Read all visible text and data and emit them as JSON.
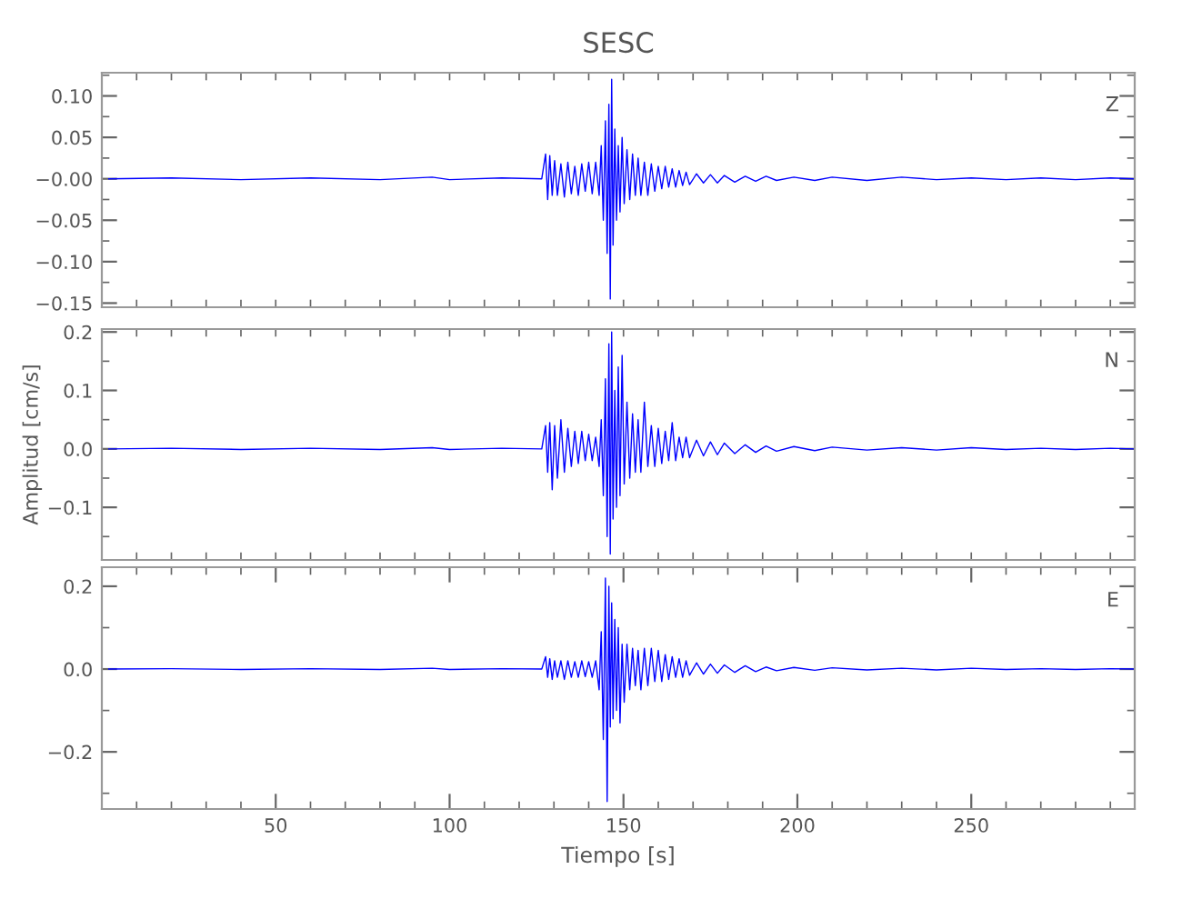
{
  "chart_data": [
    {
      "type": "line",
      "title": "SESC",
      "annotations": [
        "Z"
      ],
      "tick_labels": "y",
      "xlim": [
        0,
        297
      ],
      "ylim": [
        -0.155,
        0.128
      ],
      "xticks": [
        {
          "value": 10,
          "label": null
        },
        {
          "value": 20,
          "label": null
        },
        {
          "value": 30,
          "label": null
        },
        {
          "value": 40,
          "label": null
        },
        {
          "value": 50,
          "label": null
        },
        {
          "value": 60,
          "label": null
        },
        {
          "value": 70,
          "label": null
        },
        {
          "value": 80,
          "label": null
        },
        {
          "value": 90,
          "label": null
        },
        {
          "value": 100,
          "label": null
        },
        {
          "value": 110,
          "label": null
        },
        {
          "value": 120,
          "label": null
        },
        {
          "value": 130,
          "label": null
        },
        {
          "value": 140,
          "label": null
        },
        {
          "value": 150,
          "label": null
        },
        {
          "value": 160,
          "label": null
        },
        {
          "value": 170,
          "label": null
        },
        {
          "value": 180,
          "label": null
        },
        {
          "value": 190,
          "label": null
        },
        {
          "value": 200,
          "label": null
        },
        {
          "value": 210,
          "label": null
        },
        {
          "value": 220,
          "label": null
        },
        {
          "value": 230,
          "label": null
        },
        {
          "value": 240,
          "label": null
        },
        {
          "value": 250,
          "label": null
        },
        {
          "value": 260,
          "label": null
        },
        {
          "value": 270,
          "label": null
        },
        {
          "value": 280,
          "label": null
        },
        {
          "value": 290,
          "label": null
        }
      ],
      "yticks": [
        {
          "value": -0.15,
          "label": "−0.15"
        },
        {
          "value": -0.125,
          "label": null
        },
        {
          "value": -0.1,
          "label": "−0.10"
        },
        {
          "value": -0.075,
          "label": null
        },
        {
          "value": -0.05,
          "label": "−0.05"
        },
        {
          "value": -0.025,
          "label": null
        },
        {
          "value": 0,
          "label": "−0.00"
        },
        {
          "value": 0.025,
          "label": null
        },
        {
          "value": 0.05,
          "label": "0.05"
        },
        {
          "value": 0.075,
          "label": null
        },
        {
          "value": 0.1,
          "label": "0.10"
        },
        {
          "value": 0.125,
          "label": null
        }
      ],
      "series": [
        {
          "color": "#0000ff",
          "x": [
            2,
            20,
            40,
            60,
            80,
            95,
            100,
            115,
            126.5,
            127.6,
            128.2,
            128.8,
            129.5,
            130.2,
            131,
            132,
            133,
            134,
            135,
            136,
            137,
            138,
            139,
            140,
            141,
            142,
            143,
            143.6,
            144.2,
            144.8,
            145.3,
            145.8,
            146.2,
            146.6,
            147,
            147.5,
            148,
            148.5,
            149,
            149.6,
            150.2,
            151,
            151.8,
            152.6,
            153.4,
            154.2,
            155,
            156,
            157,
            158,
            159,
            160,
            161,
            162,
            163,
            164,
            165,
            166,
            167,
            168,
            169,
            171,
            173,
            175,
            177,
            179,
            182,
            185,
            188,
            191,
            194,
            199,
            205,
            210,
            220,
            230,
            240,
            250,
            260,
            270,
            280,
            290,
            297
          ],
          "values": [
            0,
            0.001,
            -0.001,
            0.001,
            -0.001,
            0.002,
            -0.001,
            0.001,
            0,
            0.03,
            -0.025,
            0.028,
            -0.02,
            0.022,
            -0.02,
            0.018,
            -0.022,
            0.02,
            -0.018,
            0.015,
            -0.02,
            0.018,
            -0.015,
            0.02,
            -0.018,
            0.02,
            -0.02,
            0.04,
            -0.05,
            0.07,
            -0.09,
            0.09,
            -0.145,
            0.12,
            -0.08,
            0.06,
            -0.05,
            0.04,
            -0.04,
            0.05,
            -0.03,
            0.035,
            -0.025,
            0.03,
            -0.02,
            0.025,
            -0.02,
            0.02,
            -0.02,
            0.018,
            -0.015,
            0.015,
            -0.012,
            0.015,
            -0.01,
            0.012,
            -0.01,
            0.01,
            -0.008,
            0.008,
            -0.007,
            0.006,
            -0.005,
            0.005,
            -0.005,
            0.004,
            -0.004,
            0.003,
            -0.003,
            0.003,
            -0.002,
            0.002,
            -0.002,
            0.002,
            -0.002,
            0.002,
            -0.001,
            0.001,
            -0.001,
            0.001,
            -0.001,
            0.001,
            0
          ]
        }
      ]
    },
    {
      "type": "line",
      "ylabel": "Amplitud [cm/s]",
      "annotations": [
        "N"
      ],
      "tick_labels": "y",
      "xlim": [
        0,
        297
      ],
      "ylim": [
        -0.19,
        0.205
      ],
      "xticks": [
        {
          "value": 10,
          "label": null
        },
        {
          "value": 20,
          "label": null
        },
        {
          "value": 30,
          "label": null
        },
        {
          "value": 40,
          "label": null
        },
        {
          "value": 50,
          "label": null
        },
        {
          "value": 60,
          "label": null
        },
        {
          "value": 70,
          "label": null
        },
        {
          "value": 80,
          "label": null
        },
        {
          "value": 90,
          "label": null
        },
        {
          "value": 100,
          "label": null
        },
        {
          "value": 110,
          "label": null
        },
        {
          "value": 120,
          "label": null
        },
        {
          "value": 130,
          "label": null
        },
        {
          "value": 140,
          "label": null
        },
        {
          "value": 150,
          "label": null
        },
        {
          "value": 160,
          "label": null
        },
        {
          "value": 170,
          "label": null
        },
        {
          "value": 180,
          "label": null
        },
        {
          "value": 190,
          "label": null
        },
        {
          "value": 200,
          "label": null
        },
        {
          "value": 210,
          "label": null
        },
        {
          "value": 220,
          "label": null
        },
        {
          "value": 230,
          "label": null
        },
        {
          "value": 240,
          "label": null
        },
        {
          "value": 250,
          "label": null
        },
        {
          "value": 260,
          "label": null
        },
        {
          "value": 270,
          "label": null
        },
        {
          "value": 280,
          "label": null
        },
        {
          "value": 290,
          "label": null
        }
      ],
      "yticks": [
        {
          "value": -0.15,
          "label": null
        },
        {
          "value": -0.1,
          "label": "−0.1"
        },
        {
          "value": -0.05,
          "label": null
        },
        {
          "value": 0,
          "label": "0.0"
        },
        {
          "value": 0.05,
          "label": null
        },
        {
          "value": 0.1,
          "label": "0.1"
        },
        {
          "value": 0.15,
          "label": null
        },
        {
          "value": 0.2,
          "label": "0.2"
        }
      ],
      "series": [
        {
          "color": "#0000ff",
          "x": [
            2,
            20,
            40,
            60,
            80,
            95,
            100,
            115,
            126.5,
            127.6,
            128.2,
            128.8,
            129.5,
            130.2,
            131,
            132,
            133,
            134,
            135,
            136,
            137,
            138,
            139,
            140,
            141,
            142,
            143,
            143.6,
            144.2,
            144.8,
            145.3,
            145.8,
            146.2,
            146.6,
            147,
            147.5,
            148,
            148.5,
            149,
            149.6,
            150.2,
            151,
            151.8,
            152.6,
            153.4,
            154.2,
            155,
            156,
            157,
            158,
            159,
            160,
            161,
            162,
            163,
            164,
            165,
            166,
            167,
            168,
            169,
            171,
            173,
            175,
            177,
            179,
            182,
            185,
            188,
            191,
            194,
            199,
            205,
            210,
            220,
            230,
            240,
            250,
            260,
            270,
            280,
            290,
            297
          ],
          "values": [
            0,
            0.001,
            -0.001,
            0.001,
            -0.001,
            0.002,
            -0.001,
            0.001,
            0,
            0.04,
            -0.04,
            0.045,
            -0.07,
            0.04,
            -0.05,
            0.05,
            -0.04,
            0.035,
            -0.03,
            0.03,
            -0.025,
            0.03,
            -0.02,
            0.025,
            -0.02,
            0.02,
            -0.03,
            0.05,
            -0.08,
            0.12,
            -0.15,
            0.18,
            -0.18,
            0.2,
            -0.12,
            0.1,
            -0.1,
            0.14,
            -0.08,
            0.16,
            -0.06,
            0.08,
            -0.05,
            0.06,
            -0.04,
            0.05,
            -0.04,
            0.08,
            -0.03,
            0.04,
            -0.03,
            0.035,
            -0.025,
            0.03,
            -0.02,
            0.045,
            -0.02,
            0.02,
            -0.015,
            0.02,
            -0.015,
            0.015,
            -0.012,
            0.012,
            -0.01,
            0.01,
            -0.008,
            0.007,
            -0.006,
            0.005,
            -0.004,
            0.004,
            -0.003,
            0.003,
            -0.002,
            0.002,
            -0.002,
            0.002,
            -0.001,
            0.001,
            -0.001,
            0.001,
            0
          ]
        }
      ]
    },
    {
      "type": "line",
      "xlabel": "Tiempo [s]",
      "annotations": [
        "E"
      ],
      "xlim": [
        0,
        297
      ],
      "ylim": [
        -0.338,
        0.246
      ],
      "xticks": [
        {
          "value": 10,
          "label": null
        },
        {
          "value": 20,
          "label": null
        },
        {
          "value": 30,
          "label": null
        },
        {
          "value": 40,
          "label": null
        },
        50,
        {
          "value": 60,
          "label": null
        },
        {
          "value": 70,
          "label": null
        },
        {
          "value": 80,
          "label": null
        },
        {
          "value": 90,
          "label": null
        },
        100,
        {
          "value": 110,
          "label": null
        },
        {
          "value": 120,
          "label": null
        },
        {
          "value": 130,
          "label": null
        },
        {
          "value": 140,
          "label": null
        },
        150,
        {
          "value": 160,
          "label": null
        },
        {
          "value": 170,
          "label": null
        },
        {
          "value": 180,
          "label": null
        },
        {
          "value": 190,
          "label": null
        },
        200,
        {
          "value": 210,
          "label": null
        },
        {
          "value": 220,
          "label": null
        },
        {
          "value": 230,
          "label": null
        },
        {
          "value": 240,
          "label": null
        },
        250,
        {
          "value": 260,
          "label": null
        },
        {
          "value": 270,
          "label": null
        },
        {
          "value": 280,
          "label": null
        },
        {
          "value": 290,
          "label": null
        }
      ],
      "yticks": [
        {
          "value": -0.3,
          "label": null
        },
        {
          "value": -0.2,
          "label": "−0.2"
        },
        {
          "value": -0.1,
          "label": null
        },
        {
          "value": 0,
          "label": "0.0"
        },
        {
          "value": 0.1,
          "label": null
        },
        {
          "value": 0.2,
          "label": "0.2"
        }
      ],
      "series": [
        {
          "color": "#0000ff",
          "x": [
            2,
            20,
            40,
            60,
            80,
            95,
            100,
            115,
            126.5,
            127.6,
            128.2,
            128.8,
            129.5,
            130.2,
            131,
            132,
            133,
            134,
            135,
            136,
            137,
            138,
            139,
            140,
            141,
            142,
            143,
            143.6,
            144.2,
            144.8,
            145.3,
            145.8,
            146.2,
            146.6,
            147,
            147.5,
            148,
            148.5,
            149,
            149.6,
            150.2,
            151,
            151.8,
            152.6,
            153.4,
            154.2,
            155,
            156,
            157,
            158,
            159,
            160,
            161,
            162,
            163,
            164,
            165,
            166,
            167,
            168,
            169,
            171,
            173,
            175,
            177,
            179,
            182,
            185,
            188,
            191,
            194,
            199,
            205,
            210,
            220,
            230,
            240,
            250,
            260,
            270,
            280,
            290,
            297
          ],
          "values": [
            0,
            0.001,
            -0.001,
            0.001,
            -0.001,
            0.002,
            -0.001,
            0.001,
            0,
            0.03,
            -0.02,
            0.025,
            -0.025,
            0.02,
            -0.02,
            0.02,
            -0.025,
            0.02,
            -0.02,
            0.018,
            -0.02,
            0.02,
            -0.018,
            0.018,
            -0.02,
            0.02,
            -0.05,
            0.09,
            -0.17,
            0.22,
            -0.32,
            0.2,
            -0.14,
            0.16,
            -0.12,
            0.12,
            -0.1,
            0.1,
            -0.13,
            0.06,
            -0.08,
            0.06,
            -0.05,
            0.05,
            -0.04,
            0.045,
            -0.05,
            0.05,
            -0.04,
            0.05,
            -0.03,
            0.045,
            -0.03,
            0.035,
            -0.025,
            0.03,
            -0.02,
            0.025,
            -0.02,
            0.02,
            -0.015,
            0.015,
            -0.012,
            0.012,
            -0.01,
            0.01,
            -0.008,
            0.008,
            -0.006,
            0.005,
            -0.004,
            0.004,
            -0.003,
            0.003,
            -0.002,
            0.002,
            -0.002,
            0.002,
            -0.001,
            0.001,
            -0.001,
            0.001,
            0
          ]
        }
      ]
    }
  ]
}
